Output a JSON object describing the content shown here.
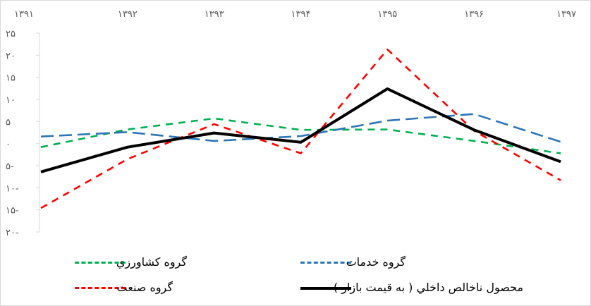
{
  "chart_data": {
    "type": "line",
    "x": [
      "۱۳۹۱",
      "۱۳۹۲",
      "۱۳۹۳",
      "۱۳۹۴",
      "۱۳۹۵",
      "۱۳۹۶",
      "۱۳۹۷"
    ],
    "y_tick_values": [
      25,
      20,
      15,
      10,
      5,
      0,
      -5,
      -10,
      -15,
      -20
    ],
    "y_tick_labels": [
      "۲۵",
      "۲۰",
      "۱۵",
      "۱۰",
      "۵",
      "۰",
      "۵-",
      "۱۰-",
      "۱۵-",
      "۲۰-"
    ],
    "ylim": [
      -20,
      25
    ],
    "grid": false,
    "legend_position": "bottom",
    "series": [
      {
        "name": "گروه كشاورزي",
        "values": [
          -0.8,
          3.2,
          5.7,
          3.1,
          3.2,
          0.6,
          -2.2
        ],
        "color": "#00b050",
        "style": "dashed"
      },
      {
        "name": "گروه خدمات",
        "values": [
          1.6,
          2.6,
          0.6,
          1.7,
          5.2,
          6.7,
          0.4
        ],
        "color": "#2e75b6",
        "style": "dashed"
      },
      {
        "name": "گروه صنعت",
        "values": [
          -14.6,
          -3.5,
          4.4,
          -2.2,
          21.3,
          2.9,
          -8.3
        ],
        "color": "#ff0000",
        "style": "dashed"
      },
      {
        "name": "محصول ناخالص داخلي ( به قيمت بازار )",
        "values": [
          -6.4,
          -0.8,
          2.4,
          0.3,
          12.4,
          3.1,
          -4.1
        ],
        "color": "#000000",
        "style": "solid"
      }
    ]
  }
}
